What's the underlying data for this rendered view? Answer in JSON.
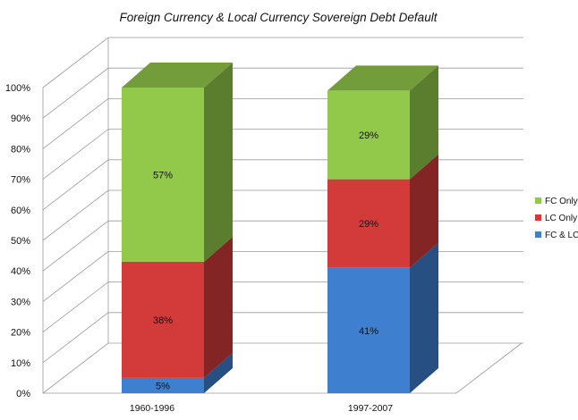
{
  "chart_data": {
    "type": "bar",
    "stacked": true,
    "three_d": true,
    "title": "Foreign Currency & Local Currency Sovereign Debt Default",
    "categories": [
      "1960-1996",
      "1997-2007"
    ],
    "series": [
      {
        "name": "FC & LC",
        "values": [
          5,
          41
        ],
        "labels": [
          "5%",
          "41%"
        ]
      },
      {
        "name": "LC Only",
        "values": [
          38,
          29
        ],
        "labels": [
          "38%",
          "29%"
        ]
      },
      {
        "name": "FC Only",
        "values": [
          57,
          29
        ],
        "labels": [
          "57%",
          "29%"
        ]
      }
    ],
    "ylim": [
      0,
      100
    ],
    "yticks": [
      "0%",
      "10%",
      "20%",
      "30%",
      "40%",
      "50%",
      "60%",
      "70%",
      "80%",
      "90%",
      "100%"
    ],
    "grid": true,
    "legend_position": "right",
    "colors": {
      "FC & LC": "#3f7fd0",
      "LC Only": "#d33b3b",
      "FC Only": "#93c94a"
    }
  }
}
